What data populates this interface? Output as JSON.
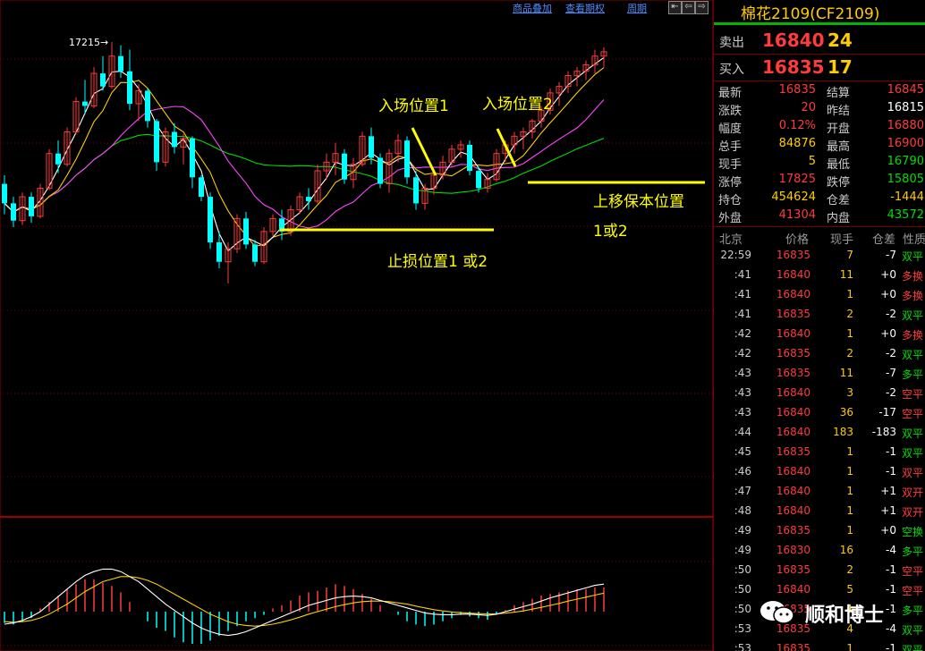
{
  "toolbar": {
    "overlay_label": "商品叠加",
    "options_label": "查看期权",
    "period_label": "周期",
    "nav_buttons": [
      "⇤",
      "⇦",
      "⇨",
      "⇥"
    ]
  },
  "annotations": {
    "high_label": "17215→",
    "entry1": "入场位置1",
    "entry2": "入场位置2",
    "stop_loss": "止损位置1  或2",
    "trail_line1": "上移保本位置",
    "trail_line2": "1或2"
  },
  "colors": {
    "up": "#ff3b3b",
    "down": "#00ffff",
    "ma5": "#ffffff",
    "ma10": "#ffcc00",
    "ma20": "#ff44ff",
    "ma60": "#00dd00",
    "annotation": "#ffff00",
    "accent_title": "#ffcc00"
  },
  "chart_data": {
    "type": "candlestick",
    "x": [
      "bar 1 … bar 68 (no dates shown)"
    ],
    "ohlc": [
      [
        16560,
        16600,
        16420,
        16470
      ],
      [
        16470,
        16500,
        16360,
        16390
      ],
      [
        16390,
        16520,
        16370,
        16500
      ],
      [
        16500,
        16520,
        16380,
        16410
      ],
      [
        16410,
        16560,
        16400,
        16540
      ],
      [
        16540,
        16720,
        16530,
        16700
      ],
      [
        16700,
        16760,
        16610,
        16650
      ],
      [
        16650,
        16820,
        16640,
        16800
      ],
      [
        16800,
        16960,
        16790,
        16940
      ],
      [
        16940,
        17040,
        16880,
        16920
      ],
      [
        16920,
        17100,
        16910,
        17070
      ],
      [
        17070,
        17150,
        16990,
        17010
      ],
      [
        17010,
        17215,
        17000,
        17150
      ],
      [
        17150,
        17200,
        17050,
        17080
      ],
      [
        17080,
        17180,
        16900,
        16930
      ],
      [
        16930,
        17020,
        16850,
        16990
      ],
      [
        16990,
        17000,
        16820,
        16850
      ],
      [
        16850,
        16860,
        16620,
        16660
      ],
      [
        16660,
        16820,
        16640,
        16800
      ],
      [
        16800,
        16840,
        16700,
        16730
      ],
      [
        16730,
        16790,
        16650,
        16770
      ],
      [
        16770,
        16780,
        16540,
        16590
      ],
      [
        16590,
        16600,
        16480,
        16500
      ],
      [
        16500,
        16520,
        16260,
        16290
      ],
      [
        16290,
        16340,
        16170,
        16200
      ],
      [
        16200,
        16290,
        16100,
        16260
      ],
      [
        16260,
        16420,
        16240,
        16400
      ],
      [
        16400,
        16430,
        16260,
        16280
      ],
      [
        16280,
        16300,
        16180,
        16200
      ],
      [
        16200,
        16360,
        16190,
        16340
      ],
      [
        16340,
        16420,
        16320,
        16400
      ],
      [
        16400,
        16440,
        16300,
        16340
      ],
      [
        16340,
        16460,
        16320,
        16440
      ],
      [
        16440,
        16520,
        16420,
        16500
      ],
      [
        16500,
        16540,
        16440,
        16480
      ],
      [
        16480,
        16650,
        16470,
        16620
      ],
      [
        16620,
        16700,
        16580,
        16660
      ],
      [
        16660,
        16750,
        16600,
        16700
      ],
      [
        16700,
        16720,
        16560,
        16580
      ],
      [
        16580,
        16680,
        16540,
        16650
      ],
      [
        16650,
        16800,
        16640,
        16780
      ],
      [
        16780,
        16820,
        16650,
        16680
      ],
      [
        16680,
        16700,
        16540,
        16560
      ],
      [
        16560,
        16720,
        16520,
        16700
      ],
      [
        16700,
        16790,
        16660,
        16760
      ],
      [
        16760,
        16780,
        16560,
        16590
      ],
      [
        16590,
        16620,
        16440,
        16470
      ],
      [
        16470,
        16560,
        16440,
        16540
      ],
      [
        16540,
        16620,
        16510,
        16600
      ],
      [
        16600,
        16690,
        16580,
        16660
      ],
      [
        16660,
        16740,
        16640,
        16720
      ],
      [
        16720,
        16760,
        16680,
        16740
      ],
      [
        16740,
        16760,
        16600,
        16620
      ],
      [
        16620,
        16640,
        16520,
        16540
      ],
      [
        16540,
        16610,
        16520,
        16580
      ],
      [
        16580,
        16720,
        16570,
        16700
      ],
      [
        16700,
        16760,
        16660,
        16740
      ],
      [
        16740,
        16800,
        16700,
        16780
      ],
      [
        16780,
        16820,
        16720,
        16800
      ],
      [
        16800,
        16860,
        16770,
        16850
      ],
      [
        16850,
        16920,
        16820,
        16900
      ],
      [
        16900,
        17000,
        16880,
        16980
      ],
      [
        16980,
        17030,
        16920,
        17010
      ],
      [
        17010,
        17080,
        16980,
        17060
      ],
      [
        17060,
        17100,
        17010,
        17080
      ],
      [
        17080,
        17130,
        17040,
        17110
      ],
      [
        17110,
        17180,
        17070,
        17150
      ],
      [
        17150,
        17190,
        17100,
        17170
      ]
    ],
    "macd_hist": [
      -0.35,
      -0.4,
      -0.3,
      -0.2,
      0.1,
      0.3,
      0.5,
      0.7,
      0.85,
      1.0,
      1.0,
      0.9,
      0.8,
      0.6,
      0.3,
      0.0,
      -0.3,
      -0.5,
      -0.6,
      -0.8,
      -0.95,
      -1.0,
      -1.0,
      -0.9,
      -0.75,
      -0.6,
      -0.45,
      -0.3,
      -0.2,
      -0.1,
      0.1,
      0.2,
      0.35,
      0.5,
      0.6,
      0.65,
      0.75,
      0.85,
      0.8,
      0.7,
      0.55,
      0.4,
      0.2,
      0.0,
      -0.1,
      -0.3,
      -0.4,
      -0.45,
      -0.4,
      -0.3,
      -0.2,
      -0.1,
      -0.15,
      -0.2,
      -0.25,
      -0.1,
      0.05,
      0.2,
      0.3,
      0.4,
      0.5,
      0.55,
      0.6,
      0.65,
      0.7,
      0.7,
      0.75,
      0.75
    ],
    "macd_dif": [
      -0.5,
      -0.45,
      -0.35,
      -0.2,
      0.0,
      0.3,
      0.6,
      0.9,
      1.2,
      1.45,
      1.6,
      1.7,
      1.7,
      1.6,
      1.4,
      1.2,
      0.9,
      0.6,
      0.3,
      0.05,
      -0.2,
      -0.45,
      -0.65,
      -0.8,
      -0.9,
      -0.95,
      -0.9,
      -0.8,
      -0.65,
      -0.5,
      -0.35,
      -0.2,
      -0.05,
      0.1,
      0.25,
      0.35,
      0.45,
      0.55,
      0.6,
      0.62,
      0.6,
      0.55,
      0.45,
      0.35,
      0.25,
      0.15,
      0.05,
      -0.05,
      -0.1,
      -0.12,
      -0.12,
      -0.1,
      -0.1,
      -0.12,
      -0.15,
      -0.1,
      0.0,
      0.1,
      0.2,
      0.3,
      0.42,
      0.55,
      0.65,
      0.75,
      0.85,
      0.95,
      1.05,
      1.1
    ],
    "macd_dea": [
      -0.4,
      -0.42,
      -0.4,
      -0.35,
      -0.25,
      -0.1,
      0.1,
      0.3,
      0.55,
      0.8,
      1.0,
      1.2,
      1.3,
      1.4,
      1.4,
      1.35,
      1.25,
      1.1,
      0.9,
      0.7,
      0.5,
      0.3,
      0.1,
      -0.1,
      -0.25,
      -0.4,
      -0.5,
      -0.55,
      -0.58,
      -0.55,
      -0.5,
      -0.42,
      -0.33,
      -0.22,
      -0.1,
      0.0,
      0.1,
      0.2,
      0.28,
      0.35,
      0.4,
      0.42,
      0.42,
      0.4,
      0.35,
      0.3,
      0.22,
      0.15,
      0.08,
      0.03,
      -0.01,
      -0.04,
      -0.06,
      -0.08,
      -0.09,
      -0.09,
      -0.06,
      -0.02,
      0.03,
      0.1,
      0.17,
      0.25,
      0.33,
      0.42,
      0.5,
      0.58,
      0.66,
      0.74
    ]
  },
  "quote": {
    "title": "棉花2109(CF2109)",
    "ask_label": "卖出",
    "ask_price": "16840",
    "ask_vol": "24",
    "bid_label": "买入",
    "bid_price": "16835",
    "bid_vol": "17",
    "stats": [
      {
        "l1": "最新",
        "v1": "16835",
        "c1": "#ff3b3b",
        "l2": "结算",
        "v2": "16845",
        "c2": "#ff3b3b"
      },
      {
        "l1": "涨跌",
        "v1": "20",
        "c1": "#ff3b3b",
        "l2": "昨结",
        "v2": "16815",
        "c2": "#ffffff"
      },
      {
        "l1": "幅度",
        "v1": "0.12%",
        "c1": "#ff3b3b",
        "l2": "开盘",
        "v2": "16880",
        "c2": "#ff3b3b"
      },
      {
        "l1": "总手",
        "v1": "84876",
        "c1": "#ffcc00",
        "l2": "最高",
        "v2": "16900",
        "c2": "#ff3b3b"
      },
      {
        "l1": "现手",
        "v1": "5",
        "c1": "#ffcc00",
        "l2": "最低",
        "v2": "16790",
        "c2": "#00dd00"
      },
      {
        "l1": "涨停",
        "v1": "17825",
        "c1": "#ff3b3b",
        "l2": "跌停",
        "v2": "15805",
        "c2": "#00dd00"
      },
      {
        "l1": "持仓",
        "v1": "454624",
        "c1": "#ffcc00",
        "l2": "仓差",
        "v2": "-1444",
        "c2": "#ffcc00"
      },
      {
        "l1": "外盘",
        "v1": "41304",
        "c1": "#ff3b3b",
        "l2": "内盘",
        "v2": "43572",
        "c2": "#00dd00"
      }
    ]
  },
  "ticks": {
    "headers": [
      "北京",
      "价格",
      "现手",
      "仓差",
      "性质"
    ],
    "rows": [
      {
        "t": "22:59",
        "p": "16835",
        "v": "7",
        "oi": "-7",
        "k": "双平",
        "pc": "#ff3b3b",
        "oc": "#ffffff",
        "kc": "#00dd00"
      },
      {
        "t": ":41",
        "p": "16840",
        "v": "11",
        "oi": "+0",
        "k": "多换",
        "pc": "#ff3b3b",
        "oc": "#ffffff",
        "kc": "#ff3b3b"
      },
      {
        "t": ":41",
        "p": "16840",
        "v": "1",
        "oi": "+0",
        "k": "多换",
        "pc": "#ff3b3b",
        "oc": "#ffffff",
        "kc": "#ff3b3b"
      },
      {
        "t": ":41",
        "p": "16835",
        "v": "2",
        "oi": "-2",
        "k": "双平",
        "pc": "#ff3b3b",
        "oc": "#ffffff",
        "kc": "#00dd00"
      },
      {
        "t": ":42",
        "p": "16840",
        "v": "1",
        "oi": "+0",
        "k": "多换",
        "pc": "#ff3b3b",
        "oc": "#ffffff",
        "kc": "#ff3b3b"
      },
      {
        "t": ":42",
        "p": "16835",
        "v": "2",
        "oi": "-2",
        "k": "双平",
        "pc": "#ff3b3b",
        "oc": "#ffffff",
        "kc": "#00dd00"
      },
      {
        "t": ":43",
        "p": "16835",
        "v": "11",
        "oi": "-7",
        "k": "多平",
        "pc": "#ff3b3b",
        "oc": "#ffffff",
        "kc": "#00dd00"
      },
      {
        "t": ":43",
        "p": "16840",
        "v": "3",
        "oi": "-2",
        "k": "空平",
        "pc": "#ff3b3b",
        "oc": "#ffffff",
        "kc": "#ff3b3b"
      },
      {
        "t": ":43",
        "p": "16840",
        "v": "36",
        "oi": "-17",
        "k": "空平",
        "pc": "#ff3b3b",
        "oc": "#ffffff",
        "kc": "#ff3b3b"
      },
      {
        "t": ":44",
        "p": "16840",
        "v": "183",
        "oi": "-183",
        "k": "双平",
        "pc": "#ff3b3b",
        "oc": "#ffffff",
        "kc": "#00dd00"
      },
      {
        "t": ":45",
        "p": "16835",
        "v": "1",
        "oi": "-1",
        "k": "双平",
        "pc": "#ff3b3b",
        "oc": "#ffffff",
        "kc": "#00dd00"
      },
      {
        "t": ":46",
        "p": "16840",
        "v": "1",
        "oi": "-1",
        "k": "双平",
        "pc": "#ff3b3b",
        "oc": "#ffffff",
        "kc": "#ff3b3b"
      },
      {
        "t": ":47",
        "p": "16840",
        "v": "1",
        "oi": "+1",
        "k": "双开",
        "pc": "#ff3b3b",
        "oc": "#ffffff",
        "kc": "#ff3b3b"
      },
      {
        "t": ":48",
        "p": "16840",
        "v": "1",
        "oi": "+1",
        "k": "双开",
        "pc": "#ff3b3b",
        "oc": "#ffffff",
        "kc": "#ff3b3b"
      },
      {
        "t": ":49",
        "p": "16835",
        "v": "1",
        "oi": "+0",
        "k": "空换",
        "pc": "#ff3b3b",
        "oc": "#ffffff",
        "kc": "#00dd00"
      },
      {
        "t": ":49",
        "p": "16830",
        "v": "16",
        "oi": "-4",
        "k": "多平",
        "pc": "#ff3b3b",
        "oc": "#ffffff",
        "kc": "#00dd00"
      },
      {
        "t": ":50",
        "p": "16835",
        "v": "2",
        "oi": "-1",
        "k": "空平",
        "pc": "#ff3b3b",
        "oc": "#ffffff",
        "kc": "#ff3b3b"
      },
      {
        "t": ":50",
        "p": "16840",
        "v": "5",
        "oi": "-1",
        "k": "空平",
        "pc": "#ff3b3b",
        "oc": "#ffffff",
        "kc": "#ff3b3b"
      },
      {
        "t": ":50",
        "p": "16835",
        "v": "1",
        "oi": "-1",
        "k": "多平",
        "pc": "#ff3b3b",
        "oc": "#ffffff",
        "kc": "#00dd00"
      },
      {
        "t": ":53",
        "p": "16835",
        "v": "4",
        "oi": "-4",
        "k": "双平",
        "pc": "#ff3b3b",
        "oc": "#ffffff",
        "kc": "#00dd00"
      },
      {
        "t": ":53",
        "p": "16835",
        "v": "1",
        "oi": "-1",
        "k": "双平",
        "pc": "#ff3b3b",
        "oc": "#ffffff",
        "kc": "#00dd00"
      }
    ]
  },
  "watermark": {
    "text": "顺和博士"
  }
}
